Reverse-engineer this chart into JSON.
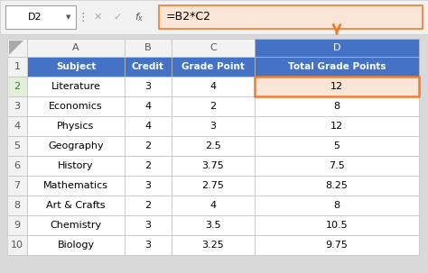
{
  "name_box": "D2",
  "formula": "=B2*C2",
  "col_headers": [
    "A",
    "B",
    "C",
    "D"
  ],
  "row_headers": [
    "1",
    "2",
    "3",
    "4",
    "5",
    "6",
    "7",
    "8",
    "9",
    "10"
  ],
  "header_row": [
    "Subject",
    "Credit",
    "Grade Point",
    "Total Grade Points"
  ],
  "rows": [
    [
      "Literature",
      "3",
      "4",
      "12"
    ],
    [
      "Economics",
      "4",
      "2",
      "8"
    ],
    [
      "Physics",
      "4",
      "3",
      "12"
    ],
    [
      "Geography",
      "2",
      "2.5",
      "5"
    ],
    [
      "History",
      "2",
      "3.75",
      "7.5"
    ],
    [
      "Mathematics",
      "3",
      "2.75",
      "8.25"
    ],
    [
      "Art & Crafts",
      "2",
      "4",
      "8"
    ],
    [
      "Chemistry",
      "3",
      "3.5",
      "10.5"
    ],
    [
      "Biology",
      "3",
      "3.25",
      "9.75"
    ]
  ],
  "header_bg": "#4472C4",
  "header_fg": "#FFFFFF",
  "selected_cell_bg": "#FBE5D6",
  "selected_cell_border": "#ED7D31",
  "selected_row_header_bg": "#D6E4BC",
  "formula_bar_bg": "#FBE5D6",
  "grid_color": "#BFBFBF",
  "col_header_bg": "#F2F2F2",
  "name_box_bg": "#FFFFFF",
  "toolbar_bg": "#F2F2F2",
  "arrow_color": "#ED7D31",
  "background": "#D9D9D9",
  "toolbar_border": "#D0D0D0",
  "row2_header_bg": "#E2EFDA",
  "col_D_header_bg": "#4472C4",
  "col_D_header_fg": "#FFFFFF"
}
